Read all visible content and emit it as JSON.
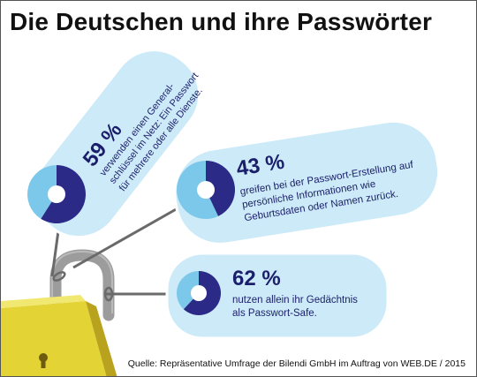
{
  "title": "Die Deutschen und ihre Passwörter",
  "source": "Quelle: Repräsentative Umfrage der Bilendi GmbH im Auftrag von WEB.DE / 2015",
  "colors": {
    "tag_fill": "#cdeaf8",
    "donut_primary": "#2b2a86",
    "donut_secondary": "#7cc8ea",
    "lock_body": "#e3d335",
    "lock_body_dark": "#b8a21e",
    "shackle": "#9c9c9c",
    "string": "#6a6a6a"
  },
  "chart_data": [
    {
      "type": "pie",
      "style": "donut",
      "value": 59,
      "label": "59 %",
      "description": [
        "verwenden einen General-",
        "schlüssel im Netz: Ein Passwort",
        "für mehrere oder alle Dienste."
      ]
    },
    {
      "type": "pie",
      "style": "donut",
      "value": 43,
      "label": "43 %",
      "description": [
        "greifen bei der Passwort-Erstellung auf",
        "persönliche Informationen wie",
        "Geburtsdaten oder Namen zurück."
      ]
    },
    {
      "type": "pie",
      "style": "donut",
      "value": 62,
      "label": "62 %",
      "description": [
        "nutzen allein ihr Gedächtnis",
        "als Passwort-Safe."
      ]
    }
  ]
}
